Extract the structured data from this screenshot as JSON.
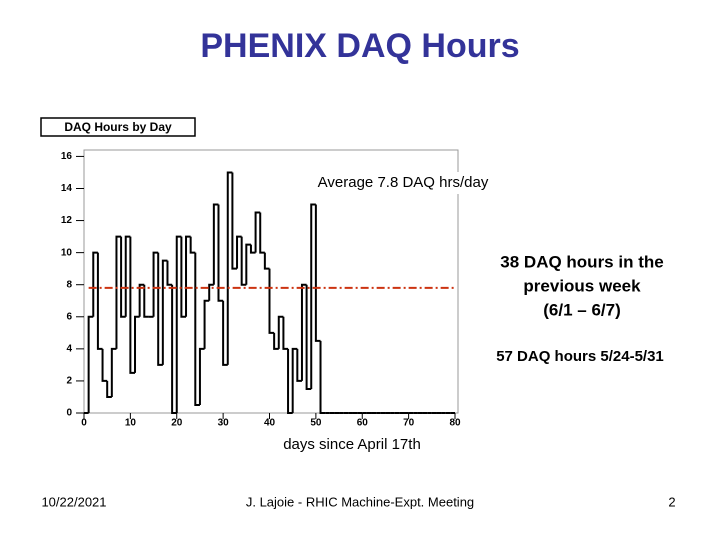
{
  "slide": {
    "title": "PHENIX DAQ Hours",
    "footer": {
      "date": "10/22/2021",
      "text": "J. Lajoie - RHIC Machine-Expt. Meeting",
      "page": "2"
    }
  },
  "chart_data": {
    "type": "histogram",
    "title": "DAQ Hours by Day",
    "x_label": "days since April 17th",
    "bins": [
      0,
      1,
      2,
      3,
      4,
      5,
      6,
      7,
      8,
      9,
      10,
      11,
      12,
      13,
      14,
      15,
      16,
      17,
      18,
      19,
      20,
      21,
      22,
      23,
      24,
      25,
      26,
      27,
      28,
      29,
      30,
      31,
      32,
      33,
      34,
      35,
      36,
      37,
      38,
      39,
      40,
      41,
      42,
      43,
      44,
      45,
      46,
      47,
      48,
      49,
      50,
      51,
      52,
      53,
      54,
      55,
      56,
      57,
      58,
      59,
      60,
      61,
      62,
      63,
      64,
      65,
      66,
      67,
      68,
      69,
      70,
      71,
      72,
      73,
      74,
      75,
      76,
      77,
      78,
      79,
      80
    ],
    "counts": [
      0,
      6,
      10,
      4,
      2,
      1,
      4,
      11,
      6,
      11,
      2.5,
      6,
      8,
      6,
      6,
      10,
      3,
      9.5,
      8,
      0,
      11,
      6,
      11,
      10,
      0.5,
      4,
      7,
      8,
      13,
      7,
      3,
      15,
      9,
      11,
      8,
      10.5,
      10,
      12.5,
      10,
      9,
      5,
      4,
      6,
      4,
      0,
      4,
      2,
      8,
      1.5,
      13,
      4.5,
      0,
      0,
      0,
      0,
      0,
      0,
      0,
      0,
      0,
      0,
      0,
      0,
      0,
      0,
      0,
      0,
      0,
      0,
      0,
      0,
      0,
      0,
      0,
      0,
      0,
      0,
      0,
      0,
      0
    ],
    "color": "#000000",
    "reference_line": {
      "value": 7.8,
      "color": "#cc3311"
    },
    "xlim": [
      0,
      80
    ],
    "xticks": [
      0,
      10,
      20,
      30,
      40,
      50,
      60,
      70,
      80
    ],
    "ylim": [
      0,
      16.4
    ],
    "yticks": [
      0,
      2,
      4,
      6,
      8,
      10,
      12,
      14,
      16
    ],
    "annotations": [
      {
        "lines": [
          "Average 7.8 DAQ hrs/day"
        ]
      },
      {
        "lines": [
          "38 DAQ hours in the",
          "previous week",
          "(6/1 – 6/7)"
        ]
      },
      {
        "lines": [
          "57 DAQ hours 5/24-5/31"
        ]
      }
    ]
  }
}
